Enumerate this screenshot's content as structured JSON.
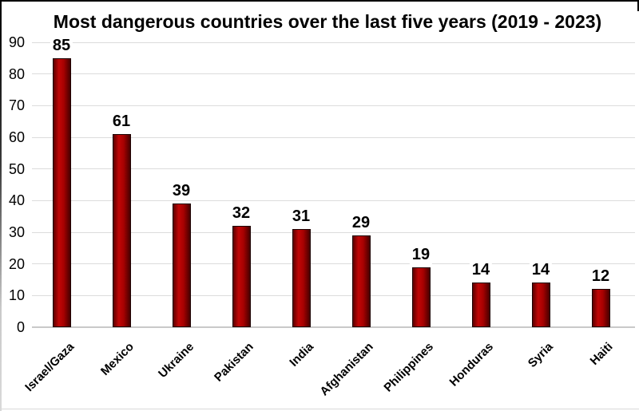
{
  "chart_data": {
    "type": "bar",
    "title": "Most dangerous countries over the last five years (2019 - 2023)",
    "categories": [
      "Israel/Gaza",
      "Mexico",
      "Ukraine",
      "Pakistan",
      "India",
      "Afghanistan",
      "Philippines",
      "Honduras",
      "Syria",
      "Haiti"
    ],
    "values": [
      85,
      61,
      39,
      32,
      31,
      29,
      19,
      14,
      14,
      12
    ],
    "data_labels": [
      85,
      61,
      39,
      32,
      31,
      29,
      19,
      14,
      14,
      12
    ],
    "xlabel": "",
    "ylabel": "",
    "ylim": [
      0,
      90
    ],
    "y_ticks": [
      0,
      10,
      20,
      30,
      40,
      50,
      60,
      70,
      80,
      90
    ],
    "grid": "horizontal",
    "legend": "none",
    "x_label_rotation_deg": 45,
    "colors": {
      "bar_gradient": [
        "#5e0000",
        "#c00606",
        "#a80101",
        "#470000"
      ],
      "bar_border": "#1c0303",
      "gridline": "#dcdcdc",
      "axis_line": "#c9c9c9",
      "text": "#000000",
      "background": "#ffffff"
    }
  }
}
